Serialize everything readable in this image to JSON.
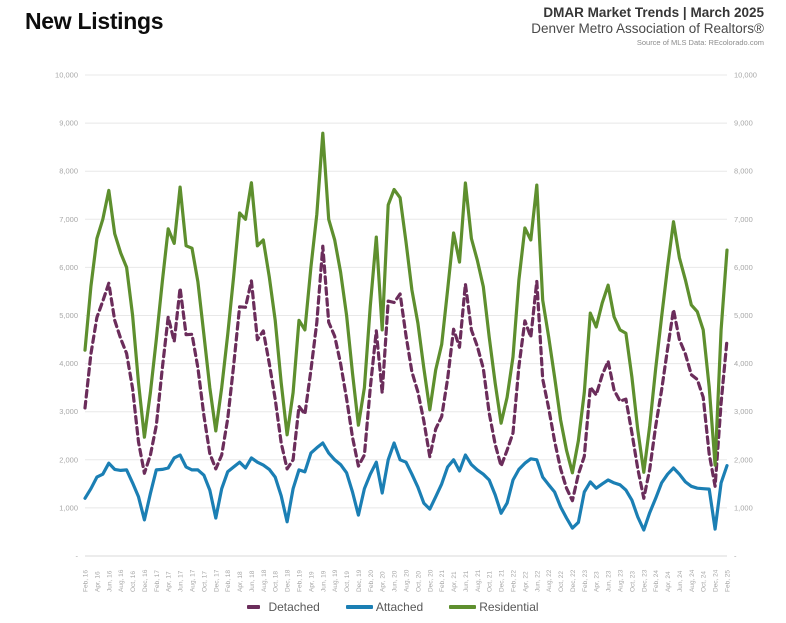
{
  "header": {
    "title": "New Listings",
    "right_line1": "DMAR Market Trends | March 2025",
    "right_line2": "Denver Metro Association of Realtors®",
    "right_line3": "Source of MLS Data: REcolorado.com"
  },
  "axes": {
    "y_left_labels": [
      "-",
      "1,000",
      "2,000",
      "3,000",
      "4,000",
      "5,000",
      "6,000",
      "7,000",
      "8,000",
      "9,000",
      "10,000"
    ],
    "y_right_labels": [
      "-",
      "1,000",
      "2,000",
      "3,000",
      "4,000",
      "5,000",
      "6,000",
      "7,000",
      "8,000",
      "9,000",
      "10,000"
    ],
    "label_color": "#a8a8a8",
    "gridline_color": "#e8e8e8",
    "baseline_color": "#d9d9d9"
  },
  "chart_data": {
    "type": "line",
    "title": "New Listings",
    "ylim": [
      0,
      10000
    ],
    "y_tick_step": 1000,
    "y_axis_sides": "both",
    "zero_label": "-",
    "grid": true,
    "legend_position": "bottom",
    "x_tick_every": 2,
    "x": [
      "Feb, 16",
      "Mar, 16",
      "Apr, 16",
      "May, 16",
      "Jun, 16",
      "Jul, 16",
      "Aug, 16",
      "Sep, 16",
      "Oct, 16",
      "Nov, 16",
      "Dec, 16",
      "Jan, 17",
      "Feb, 17",
      "Mar, 17",
      "Apr, 17",
      "May, 17",
      "Jun, 17",
      "Jul, 17",
      "Aug, 17",
      "Sep, 17",
      "Oct, 17",
      "Nov, 17",
      "Dec, 17",
      "Jan, 18",
      "Feb, 18",
      "Mar, 18",
      "Apr, 18",
      "May, 18",
      "Jun, 18",
      "Jul, 18",
      "Aug, 18",
      "Sep, 18",
      "Oct, 18",
      "Nov, 18",
      "Dec, 18",
      "Jan, 19",
      "Feb, 19",
      "Mar, 19",
      "Apr, 19",
      "May, 19",
      "Jun, 19",
      "Jul, 19",
      "Aug, 19",
      "Sep, 19",
      "Oct, 19",
      "Nov, 19",
      "Dec, 19",
      "Jan, 20",
      "Feb, 20",
      "Mar, 20",
      "Apr, 20",
      "May, 20",
      "Jun, 20",
      "Jul, 20",
      "Aug, 20",
      "Sep, 20",
      "Oct, 20",
      "Nov, 20",
      "Dec, 20",
      "Jan, 21",
      "Feb, 21",
      "Mar, 21",
      "Apr, 21",
      "May, 21",
      "Jun, 21",
      "Jul, 21",
      "Aug, 21",
      "Sep, 21",
      "Oct, 21",
      "Nov, 21",
      "Dec, 21",
      "Jan, 22",
      "Feb, 22",
      "Mar, 22",
      "Apr, 22",
      "May, 22",
      "Jun, 22",
      "Jul, 22",
      "Aug, 22",
      "Sep, 22",
      "Oct, 22",
      "Nov, 22",
      "Dec, 22",
      "Jan, 23",
      "Feb, 23",
      "Mar, 23",
      "Apr, 23",
      "May, 23",
      "Jun, 23",
      "Jul, 23",
      "Aug, 23",
      "Sep, 23",
      "Oct, 23",
      "Nov, 23",
      "Dec, 23",
      "Jan, 24",
      "Feb, 24",
      "Mar, 24",
      "Apr, 24",
      "May, 24",
      "Jun, 24",
      "Jul, 24",
      "Aug, 24",
      "Sep, 24",
      "Oct, 24",
      "Nov, 24",
      "Dec, 24",
      "Jan, 25",
      "Feb, 25"
    ],
    "series": [
      {
        "name": "Detached",
        "color": "#6B2D5B",
        "dash": true,
        "values": [
          3080,
          4200,
          4960,
          5300,
          5670,
          4900,
          4520,
          4210,
          3480,
          2370,
          1720,
          2100,
          2710,
          3900,
          4970,
          4460,
          5570,
          4600,
          4610,
          3910,
          2920,
          2130,
          1810,
          2100,
          2850,
          3950,
          5180,
          5170,
          5720,
          4500,
          4680,
          4000,
          3260,
          2350,
          1810,
          2000,
          3110,
          2950,
          3860,
          4850,
          6440,
          4860,
          4570,
          4000,
          3270,
          2470,
          1870,
          2100,
          3500,
          4680,
          3390,
          5300,
          5270,
          5450,
          4580,
          3830,
          3410,
          2810,
          2065,
          2640,
          2900,
          3680,
          4715,
          4340,
          5655,
          4700,
          4360,
          3900,
          2970,
          2320,
          1870,
          2200,
          2560,
          3940,
          4890,
          4550,
          5710,
          3680,
          3070,
          2390,
          1810,
          1410,
          1150,
          1700,
          2070,
          3510,
          3350,
          3760,
          4050,
          3450,
          3220,
          3260,
          2560,
          1810,
          1200,
          1800,
          2700,
          3450,
          4310,
          5120,
          4500,
          4200,
          3770,
          3670,
          3300,
          2120,
          1450,
          3180,
          4490
        ]
      },
      {
        "name": "Attached",
        "color": "#1B7FB4",
        "dash": false,
        "values": [
          1200,
          1400,
          1640,
          1700,
          1930,
          1800,
          1780,
          1790,
          1520,
          1230,
          750,
          1300,
          1790,
          1800,
          1830,
          2040,
          2100,
          1850,
          1790,
          1790,
          1680,
          1370,
          790,
          1400,
          1750,
          1850,
          1950,
          1830,
          2040,
          1950,
          1890,
          1800,
          1640,
          1250,
          710,
          1400,
          1790,
          1750,
          2140,
          2250,
          2350,
          2140,
          2000,
          1900,
          1730,
          1330,
          850,
          1400,
          1700,
          1950,
          1310,
          2000,
          2350,
          2000,
          1950,
          1700,
          1430,
          1100,
          975,
          1230,
          1500,
          1850,
          2000,
          1770,
          2100,
          1900,
          1790,
          1700,
          1580,
          1270,
          890,
          1100,
          1580,
          1800,
          1930,
          2020,
          2000,
          1640,
          1480,
          1330,
          1020,
          790,
          580,
          700,
          1330,
          1540,
          1410,
          1500,
          1580,
          1520,
          1480,
          1370,
          1160,
          810,
          540,
          900,
          1200,
          1520,
          1700,
          1830,
          1700,
          1540,
          1450,
          1410,
          1400,
          1390,
          560,
          1520,
          1880
        ]
      },
      {
        "name": "Residential",
        "color": "#5E8F2E",
        "dash": false,
        "values": [
          4280,
          5600,
          6600,
          7000,
          7600,
          6700,
          6300,
          6000,
          5000,
          3600,
          2470,
          3400,
          4500,
          5700,
          6800,
          6500,
          7670,
          6450,
          6400,
          5700,
          4600,
          3500,
          2600,
          3500,
          4600,
          5800,
          7130,
          7000,
          7760,
          6450,
          6570,
          5800,
          4900,
          3600,
          2520,
          3400,
          4900,
          4700,
          6000,
          7100,
          8790,
          7000,
          6570,
          5900,
          5000,
          3800,
          2720,
          3500,
          5200,
          6630,
          4700,
          7300,
          7620,
          7450,
          6530,
          5530,
          4840,
          3910,
          3040,
          3870,
          4400,
          5530,
          6715,
          6110,
          7755,
          6600,
          6150,
          5600,
          4550,
          3590,
          2760,
          3300,
          4140,
          5740,
          6820,
          6570,
          7710,
          5320,
          4550,
          3720,
          2830,
          2200,
          1730,
          2400,
          3400,
          5050,
          4760,
          5260,
          5630,
          4970,
          4700,
          4630,
          3720,
          2620,
          1740,
          2700,
          3900,
          4970,
          6010,
          6950,
          6200,
          5740,
          5220,
          5080,
          4700,
          3510,
          1890,
          4700,
          6360
        ]
      }
    ]
  }
}
